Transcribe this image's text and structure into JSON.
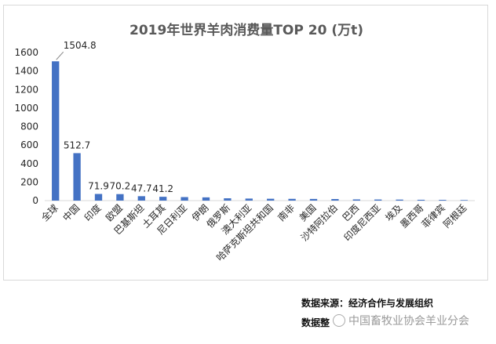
{
  "chart_data": {
    "type": "bar",
    "title": "2019年世界羊肉消费量TOP 20 (万t)",
    "xlabel": "",
    "ylabel": "",
    "ylim": [
      0,
      1600
    ],
    "yticks": [
      0,
      200,
      400,
      600,
      800,
      1000,
      1200,
      1400,
      1600
    ],
    "grid": false,
    "legend": "none",
    "bar_color": "#4472c4",
    "categories": [
      "全球",
      "中国",
      "印度",
      "欧盟",
      "巴基斯坦",
      "土耳其",
      "尼日利亚",
      "伊朗",
      "俄罗斯",
      "澳大利亚",
      "哈萨克斯坦共和国",
      "南非",
      "美国",
      "沙特阿拉伯",
      "巴西",
      "印度尼西亚",
      "埃及",
      "墨西哥",
      "菲律宾",
      "阿根廷"
    ],
    "values": [
      1504.8,
      512.7,
      71.9,
      70.2,
      47.7,
      41.2,
      38,
      35,
      25,
      22,
      20,
      19,
      18,
      17,
      13,
      12,
      11,
      9,
      8,
      6
    ],
    "data_labels": [
      "1504.8",
      "512.7",
      "71.9",
      "70.2",
      "47.7",
      "41.2",
      "",
      "",
      "",
      "",
      "",
      "",
      "",
      "",
      "",
      "",
      "",
      "",
      "",
      ""
    ]
  },
  "footer": {
    "source": "数据来源：经济合作与发展组织",
    "compiled_prefix": "数据整",
    "watermark": "中国畜牧业协会羊业分会"
  }
}
